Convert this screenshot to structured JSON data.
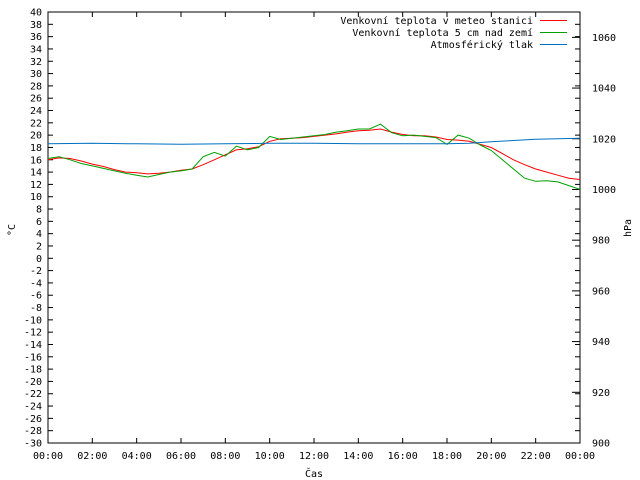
{
  "chart_data": {
    "type": "line",
    "xlabel": "Čas",
    "ylabel": "°C",
    "y2label": "hPa",
    "x_ticks": [
      "00:00",
      "02:00",
      "04:00",
      "06:00",
      "08:00",
      "10:00",
      "12:00",
      "14:00",
      "16:00",
      "18:00",
      "20:00",
      "22:00",
      "00:00"
    ],
    "x_range_hours": [
      0,
      24
    ],
    "ylim": [
      -30,
      40
    ],
    "y_ticks_step": 2,
    "y2lim": [
      900,
      1070
    ],
    "y2_ticks": [
      900,
      920,
      940,
      960,
      980,
      1000,
      1020,
      1040,
      1060
    ],
    "grid": false,
    "legend_position": "top-right",
    "series": [
      {
        "name": "Venkovní teplota v meteo stanici",
        "axis": "left",
        "color": "#ff0000",
        "points": [
          [
            0,
            16.0
          ],
          [
            0.5,
            16.3
          ],
          [
            1,
            16.2
          ],
          [
            1.5,
            15.8
          ],
          [
            2,
            15.3
          ],
          [
            2.5,
            14.9
          ],
          [
            3,
            14.4
          ],
          [
            3.5,
            14.0
          ],
          [
            4,
            13.9
          ],
          [
            4.5,
            13.7
          ],
          [
            5,
            13.8
          ],
          [
            5.5,
            14.0
          ],
          [
            6,
            14.3
          ],
          [
            6.5,
            14.5
          ],
          [
            7,
            15.2
          ],
          [
            7.5,
            16.0
          ],
          [
            8,
            16.8
          ],
          [
            8.5,
            17.6
          ],
          [
            9,
            17.8
          ],
          [
            9.5,
            18.1
          ],
          [
            10,
            19.0
          ],
          [
            10.5,
            19.4
          ],
          [
            11,
            19.5
          ],
          [
            11.5,
            19.6
          ],
          [
            12,
            19.8
          ],
          [
            12.5,
            20.0
          ],
          [
            13,
            20.2
          ],
          [
            13.5,
            20.5
          ],
          [
            14,
            20.7
          ],
          [
            14.5,
            20.8
          ],
          [
            15,
            21.0
          ],
          [
            15.5,
            20.5
          ],
          [
            16,
            20.1
          ],
          [
            16.5,
            19.9
          ],
          [
            17,
            19.9
          ],
          [
            17.5,
            19.7
          ],
          [
            18,
            19.3
          ],
          [
            18.5,
            19.2
          ],
          [
            19,
            19.0
          ],
          [
            19.5,
            18.5
          ],
          [
            20,
            18.0
          ],
          [
            20.5,
            17.0
          ],
          [
            21,
            16.0
          ],
          [
            21.5,
            15.2
          ],
          [
            22,
            14.5
          ],
          [
            22.5,
            14.0
          ],
          [
            23,
            13.5
          ],
          [
            23.5,
            13.0
          ],
          [
            24,
            12.8
          ]
        ]
      },
      {
        "name": "Venkovní teplota 5 cm nad zemí",
        "axis": "left",
        "color": "#00a000",
        "points": [
          [
            0,
            16.2
          ],
          [
            0.5,
            16.5
          ],
          [
            1,
            16.0
          ],
          [
            1.5,
            15.4
          ],
          [
            2,
            15.0
          ],
          [
            2.5,
            14.6
          ],
          [
            3,
            14.2
          ],
          [
            3.5,
            13.8
          ],
          [
            4,
            13.5
          ],
          [
            4.5,
            13.2
          ],
          [
            5,
            13.6
          ],
          [
            5.5,
            14.0
          ],
          [
            6,
            14.2
          ],
          [
            6.5,
            14.5
          ],
          [
            7,
            16.5
          ],
          [
            7.5,
            17.2
          ],
          [
            8,
            16.6
          ],
          [
            8.5,
            18.2
          ],
          [
            9,
            17.6
          ],
          [
            9.5,
            18.0
          ],
          [
            10,
            19.8
          ],
          [
            10.5,
            19.3
          ],
          [
            11,
            19.5
          ],
          [
            11.5,
            19.7
          ],
          [
            12,
            19.9
          ],
          [
            12.5,
            20.1
          ],
          [
            13,
            20.5
          ],
          [
            13.5,
            20.7
          ],
          [
            14,
            21.0
          ],
          [
            14.5,
            21.0
          ],
          [
            15,
            21.8
          ],
          [
            15.5,
            20.4
          ],
          [
            16,
            19.9
          ],
          [
            16.5,
            20.0
          ],
          [
            17,
            19.8
          ],
          [
            17.5,
            19.6
          ],
          [
            18,
            18.5
          ],
          [
            18.5,
            20.0
          ],
          [
            19,
            19.5
          ],
          [
            19.5,
            18.4
          ],
          [
            20,
            17.5
          ],
          [
            20.5,
            16.0
          ],
          [
            21,
            14.5
          ],
          [
            21.5,
            13.0
          ],
          [
            22,
            12.5
          ],
          [
            22.5,
            12.6
          ],
          [
            23,
            12.4
          ],
          [
            23.5,
            11.8
          ],
          [
            24,
            11.2
          ]
        ]
      },
      {
        "name": "Atmosférický tlak",
        "axis": "right",
        "color": "#0070c0",
        "points": [
          [
            0,
            1018.0
          ],
          [
            2,
            1018.2
          ],
          [
            4,
            1018.0
          ],
          [
            6,
            1017.8
          ],
          [
            8,
            1018.0
          ],
          [
            10,
            1018.2
          ],
          [
            12,
            1018.2
          ],
          [
            14,
            1018.0
          ],
          [
            16,
            1018.0
          ],
          [
            18,
            1018.0
          ],
          [
            19,
            1018.2
          ],
          [
            20,
            1018.8
          ],
          [
            21,
            1019.3
          ],
          [
            22,
            1019.8
          ],
          [
            23,
            1020.0
          ],
          [
            24,
            1020.2
          ]
        ]
      }
    ]
  }
}
